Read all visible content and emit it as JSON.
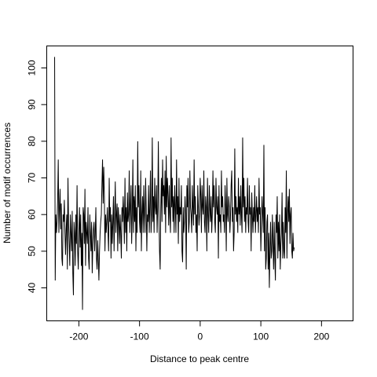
{
  "chart_data": {
    "type": "line",
    "title": "",
    "xlabel": "Distance to peak centre",
    "ylabel": "Number of motif occurrences",
    "xlim": [
      -253,
      252
    ],
    "ylim": [
      31,
      106
    ],
    "x_ticks": [
      -200,
      -100,
      0,
      100,
      200
    ],
    "x_tick_labels": [
      "-200",
      "-100",
      "0",
      "100",
      "200"
    ],
    "y_ticks": [
      40,
      50,
      60,
      70,
      80,
      90,
      100
    ],
    "y_tick_labels": [
      "40",
      "50",
      "60",
      "70",
      "80",
      "90",
      "100"
    ],
    "grid": false,
    "legend": "none",
    "line_color": "#000000",
    "x_start": -240,
    "x_step": 1,
    "series": [
      {
        "values": [
          103,
          42,
          60,
          55,
          58,
          64,
          75,
          55,
          62,
          67,
          56,
          63,
          48,
          46,
          60,
          58,
          64,
          55,
          49,
          56,
          60,
          45,
          70,
          58,
          52,
          46,
          60,
          55,
          50,
          61,
          44,
          38,
          58,
          55,
          46,
          60,
          52,
          68,
          50,
          45,
          55,
          62,
          51,
          60,
          46,
          55,
          34,
          62,
          60,
          52,
          67,
          46,
          58,
          55,
          52,
          62,
          48,
          45,
          60,
          55,
          50,
          58,
          44,
          52,
          56,
          58,
          50,
          55,
          62,
          48,
          45,
          53,
          48,
          42,
          50,
          55,
          58,
          60,
          68,
          75,
          63,
          73,
          65,
          50,
          60,
          55,
          58,
          62,
          55,
          50,
          70,
          58,
          62,
          48,
          60,
          52,
          58,
          65,
          50,
          60,
          69,
          55,
          60,
          63,
          50,
          62,
          58,
          52,
          60,
          55,
          48,
          62,
          58,
          65,
          60,
          52,
          70,
          55,
          62,
          50,
          66,
          58,
          60,
          72,
          55,
          62,
          68,
          52,
          60,
          75,
          55,
          65,
          58,
          68,
          50,
          62,
          55,
          80,
          62,
          68,
          58,
          55,
          72,
          50,
          60,
          65,
          55,
          68,
          60,
          55,
          70,
          62,
          50,
          60,
          58,
          68,
          55,
          62,
          72,
          55,
          60,
          81,
          58,
          65,
          55,
          70,
          62,
          60,
          68,
          55,
          62,
          80,
          60,
          50,
          45,
          62,
          70,
          58,
          75,
          65,
          68,
          60,
          72,
          55,
          76,
          62,
          70,
          65,
          57,
          68,
          60,
          55,
          81,
          62,
          70,
          58,
          65,
          55,
          68,
          62,
          55,
          75,
          60,
          65,
          52,
          70,
          58,
          62,
          60,
          68,
          50,
          47,
          62,
          55,
          58,
          65,
          60,
          45,
          68,
          62,
          70,
          55,
          58,
          72,
          62,
          60,
          55,
          68,
          62,
          57,
          75,
          60,
          65,
          55,
          60,
          50,
          68,
          62,
          57,
          60,
          70,
          65,
          55,
          68,
          62,
          60,
          72,
          58,
          55,
          65,
          62,
          50,
          70,
          60,
          55,
          68,
          62,
          58,
          65,
          55,
          60,
          72,
          62,
          68,
          58,
          55,
          70,
          62,
          60,
          65,
          48,
          68,
          58,
          60,
          55,
          72,
          62,
          65,
          58,
          60,
          55,
          68,
          62,
          50,
          70,
          60,
          58,
          65,
          62,
          55,
          60,
          68,
          72,
          58,
          62,
          50,
          55,
          78,
          60,
          65,
          58,
          62,
          55,
          70,
          60,
          65,
          57,
          68,
          60,
          55,
          81,
          62,
          70,
          58,
          65,
          55,
          62,
          60,
          70,
          58,
          55,
          68,
          60,
          62,
          50,
          66,
          60,
          55,
          62,
          58,
          68,
          55,
          60,
          65,
          58,
          62,
          55,
          70,
          60,
          62,
          50,
          58,
          65,
          60,
          55,
          79,
          50,
          62,
          45,
          48,
          58,
          60,
          45,
          55,
          40,
          50,
          58,
          48,
          50,
          60,
          52,
          45,
          58,
          48,
          42,
          60,
          55,
          65,
          48,
          58,
          50,
          60,
          45,
          52,
          55,
          66,
          48,
          58,
          50,
          48,
          62,
          55,
          72,
          48,
          60,
          65,
          58,
          67,
          52,
          60,
          62,
          50,
          48,
          55,
          50,
          51
        ]
      }
    ]
  }
}
